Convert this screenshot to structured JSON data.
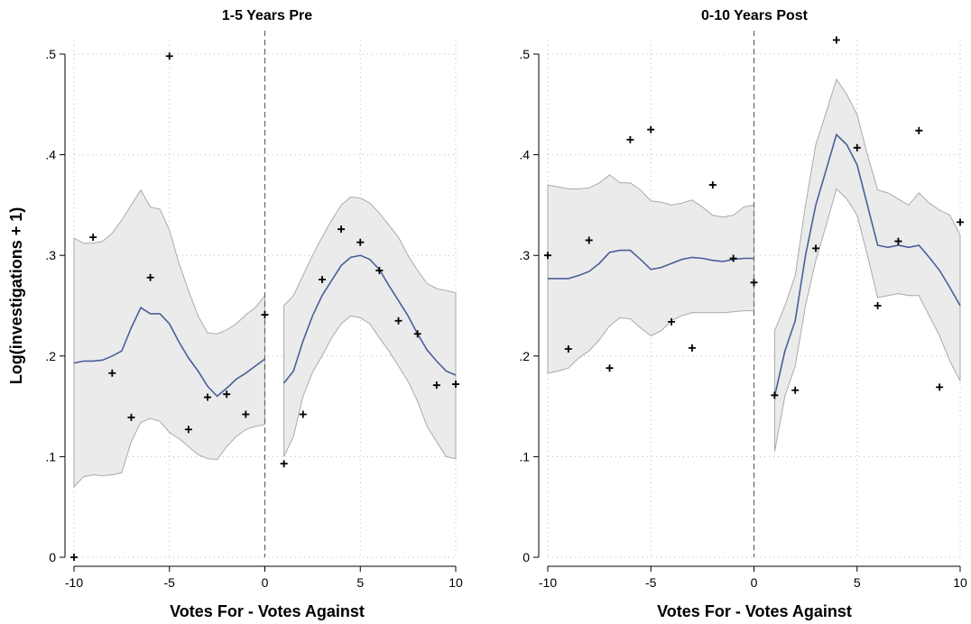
{
  "chart_data": {
    "type": "scatter",
    "ylabel": "Log(investigations + 1)",
    "yticks": [
      "0",
      ".1",
      ".2",
      ".3",
      ".4",
      ".5"
    ],
    "ytick_values": [
      0,
      0.1,
      0.2,
      0.3,
      0.4,
      0.5
    ],
    "xticks": [
      "-10",
      "-5",
      "0",
      "5",
      "10"
    ],
    "xtick_values": [
      -10,
      -5,
      0,
      5,
      10
    ],
    "ylim": [
      0,
      0.5
    ],
    "xlim": [
      -10,
      10
    ],
    "grid": true,
    "cutoff": 0,
    "colors": {
      "fit": "#4a5f9a",
      "band_fill": "#ebebeb",
      "band_edge": "#aaaaaa",
      "points": "#000000",
      "grid": "#bbbbbb"
    },
    "panels": [
      {
        "title": "1-5 Years Pre",
        "xlabel": "Votes For - Votes Against",
        "points": {
          "x": [
            -10,
            -9,
            -8,
            -7,
            -6,
            -5,
            -4,
            -3,
            -2,
            -1,
            0,
            1,
            2,
            3,
            4,
            5,
            6,
            7,
            8,
            9,
            10
          ],
          "y": [
            0.0,
            0.318,
            0.183,
            0.139,
            0.278,
            0.498,
            0.127,
            0.159,
            0.162,
            0.142,
            0.241,
            0.093,
            0.142,
            0.276,
            0.326,
            0.313,
            0.285,
            0.235,
            0.222,
            0.171,
            0.172
          ]
        },
        "left_fit": {
          "x": [
            -10,
            -9.5,
            -9,
            -8.5,
            -8,
            -7.5,
            -7,
            -6.5,
            -6,
            -5.5,
            -5,
            -4.5,
            -4,
            -3.5,
            -3,
            -2.5,
            -2,
            -1.5,
            -1,
            -0.5,
            0
          ],
          "fit": [
            0.193,
            0.195,
            0.195,
            0.196,
            0.2,
            0.205,
            0.228,
            0.248,
            0.242,
            0.242,
            0.232,
            0.214,
            0.198,
            0.185,
            0.17,
            0.16,
            0.168,
            0.177,
            0.183,
            0.19,
            0.197
          ],
          "lower": [
            0.07,
            0.08,
            0.082,
            0.081,
            0.082,
            0.084,
            0.115,
            0.134,
            0.138,
            0.135,
            0.124,
            0.118,
            0.11,
            0.102,
            0.098,
            0.097,
            0.11,
            0.12,
            0.127,
            0.13,
            0.132
          ],
          "upper": [
            0.317,
            0.312,
            0.312,
            0.314,
            0.322,
            0.335,
            0.35,
            0.365,
            0.348,
            0.346,
            0.325,
            0.292,
            0.265,
            0.24,
            0.223,
            0.222,
            0.226,
            0.232,
            0.241,
            0.248,
            0.26
          ]
        },
        "right_fit": {
          "x": [
            1,
            1.5,
            2,
            2.5,
            3,
            3.5,
            4,
            4.5,
            5,
            5.5,
            6,
            6.5,
            7,
            7.5,
            8,
            8.5,
            9,
            9.5,
            10
          ],
          "fit": [
            0.173,
            0.185,
            0.215,
            0.24,
            0.26,
            0.275,
            0.29,
            0.298,
            0.3,
            0.296,
            0.286,
            0.27,
            0.255,
            0.24,
            0.222,
            0.206,
            0.195,
            0.185,
            0.181
          ],
          "lower": [
            0.1,
            0.12,
            0.16,
            0.184,
            0.2,
            0.218,
            0.232,
            0.24,
            0.238,
            0.232,
            0.218,
            0.205,
            0.19,
            0.175,
            0.155,
            0.13,
            0.115,
            0.1,
            0.098
          ],
          "upper": [
            0.25,
            0.26,
            0.28,
            0.3,
            0.318,
            0.335,
            0.35,
            0.358,
            0.357,
            0.352,
            0.342,
            0.33,
            0.318,
            0.3,
            0.285,
            0.272,
            0.267,
            0.265,
            0.263
          ]
        }
      },
      {
        "title": "0-10 Years Post",
        "xlabel": "Votes For - Votes Against",
        "points": {
          "x": [
            -10,
            -9,
            -8,
            -7,
            -6,
            -5,
            -4,
            -3,
            -2,
            -1,
            0,
            1,
            2,
            3,
            4,
            5,
            6,
            7,
            8,
            9,
            10
          ],
          "y": [
            0.3,
            0.207,
            0.315,
            0.188,
            0.415,
            0.425,
            0.234,
            0.208,
            0.37,
            0.297,
            0.273,
            0.161,
            0.166,
            0.307,
            0.514,
            0.407,
            0.25,
            0.314,
            0.424,
            0.169,
            0.333
          ]
        },
        "left_fit": {
          "x": [
            -10,
            -9.5,
            -9,
            -8.5,
            -8,
            -7.5,
            -7,
            -6.5,
            -6,
            -5.5,
            -5,
            -4.5,
            -4,
            -3.5,
            -3,
            -2.5,
            -2,
            -1.5,
            -1,
            -0.5,
            0
          ],
          "fit": [
            0.277,
            0.277,
            0.277,
            0.28,
            0.284,
            0.292,
            0.303,
            0.305,
            0.305,
            0.296,
            0.286,
            0.288,
            0.292,
            0.296,
            0.298,
            0.297,
            0.295,
            0.294,
            0.296,
            0.297,
            0.297
          ],
          "lower": [
            0.183,
            0.185,
            0.188,
            0.198,
            0.205,
            0.216,
            0.23,
            0.238,
            0.237,
            0.228,
            0.22,
            0.225,
            0.235,
            0.24,
            0.243,
            0.243,
            0.243,
            0.243,
            0.244,
            0.245,
            0.245
          ],
          "upper": [
            0.37,
            0.368,
            0.366,
            0.366,
            0.367,
            0.372,
            0.38,
            0.372,
            0.372,
            0.365,
            0.354,
            0.353,
            0.35,
            0.352,
            0.355,
            0.348,
            0.34,
            0.338,
            0.34,
            0.348,
            0.35
          ]
        },
        "right_fit": {
          "x": [
            1,
            1.5,
            2,
            2.5,
            3,
            3.5,
            4,
            4.5,
            5,
            5.5,
            6,
            6.5,
            7,
            7.5,
            8,
            8.5,
            9,
            9.5,
            10
          ],
          "fit": [
            0.16,
            0.205,
            0.235,
            0.3,
            0.35,
            0.385,
            0.42,
            0.41,
            0.39,
            0.35,
            0.31,
            0.308,
            0.31,
            0.308,
            0.31,
            0.298,
            0.285,
            0.268,
            0.25
          ],
          "lower": [
            0.105,
            0.16,
            0.19,
            0.25,
            0.295,
            0.33,
            0.366,
            0.356,
            0.34,
            0.3,
            0.258,
            0.26,
            0.262,
            0.26,
            0.26,
            0.24,
            0.22,
            0.195,
            0.175
          ],
          "upper": [
            0.225,
            0.25,
            0.28,
            0.35,
            0.41,
            0.442,
            0.475,
            0.46,
            0.44,
            0.4,
            0.365,
            0.362,
            0.356,
            0.35,
            0.362,
            0.352,
            0.345,
            0.34,
            0.32
          ]
        }
      }
    ]
  }
}
